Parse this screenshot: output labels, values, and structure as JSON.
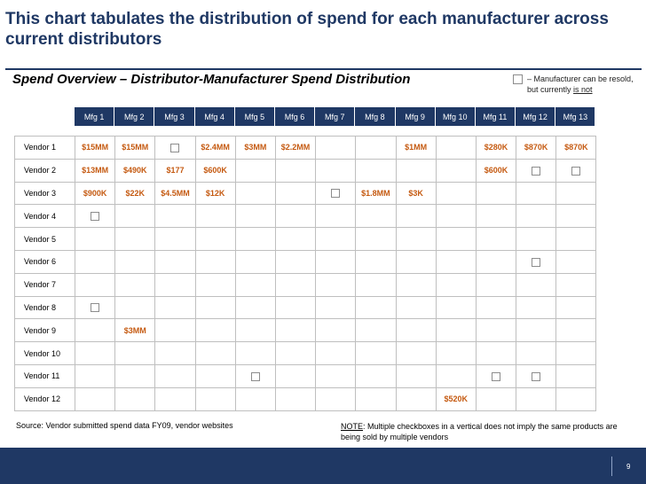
{
  "title": "This chart tabulates the distribution of spend for each manufacturer across current distributors",
  "subtitle": "Spend Overview – Distributor-Manufacturer Spend Distribution",
  "legend": {
    "text_before": "– Manufacturer can be resold, but currently ",
    "text_underlined": "is not",
    "icon": "checkbox-icon"
  },
  "manufacturers": [
    "Mfg 1",
    "Mfg 2",
    "Mfg 3",
    "Mfg 4",
    "Mfg 5",
    "Mfg 6",
    "Mfg 7",
    "Mfg 8",
    "Mfg 9",
    "Mfg 10",
    "Mfg 11",
    "Mfg 12",
    "Mfg 13"
  ],
  "rows": [
    {
      "vendor": "Vendor 1",
      "cells": [
        "$15MM",
        "$15MM",
        "[x]",
        "$2.4MM",
        "$3MM",
        "$2.2MM",
        "",
        "",
        "$1MM",
        "",
        "$280K",
        "$870K",
        "$870K"
      ]
    },
    {
      "vendor": "Vendor 2",
      "cells": [
        "$13MM",
        "$490K",
        "$177",
        "$600K",
        "",
        "",
        "",
        "",
        "",
        "",
        "$600K",
        "[x]",
        "[x]"
      ]
    },
    {
      "vendor": "Vendor 3",
      "cells": [
        "$900K",
        "$22K",
        "$4.5MM",
        "$12K",
        "",
        "",
        "[x]",
        "$1.8MM",
        "$3K",
        "",
        "",
        "",
        ""
      ]
    },
    {
      "vendor": "Vendor 4",
      "cells": [
        "[x]",
        "",
        "",
        "",
        "",
        "",
        "",
        "",
        "",
        "",
        "",
        "",
        ""
      ]
    },
    {
      "vendor": "Vendor 5",
      "cells": [
        "",
        "",
        "",
        "",
        "",
        "",
        "",
        "",
        "",
        "",
        "",
        "",
        ""
      ]
    },
    {
      "vendor": "Vendor 6",
      "cells": [
        "",
        "",
        "",
        "",
        "",
        "",
        "",
        "",
        "",
        "",
        "",
        "[x]",
        ""
      ]
    },
    {
      "vendor": "Vendor 7",
      "cells": [
        "",
        "",
        "",
        "",
        "",
        "",
        "",
        "",
        "",
        "",
        "",
        "",
        ""
      ]
    },
    {
      "vendor": "Vendor 8",
      "cells": [
        "[x]",
        "",
        "",
        "",
        "",
        "",
        "",
        "",
        "",
        "",
        "",
        "",
        ""
      ]
    },
    {
      "vendor": "Vendor 9",
      "cells": [
        "",
        "$3MM",
        "",
        "",
        "",
        "",
        "",
        "",
        "",
        "",
        "",
        "",
        ""
      ]
    },
    {
      "vendor": "Vendor 10",
      "cells": [
        "",
        "",
        "",
        "",
        "",
        "",
        "",
        "",
        "",
        "",
        "",
        "",
        ""
      ]
    },
    {
      "vendor": "Vendor 11",
      "cells": [
        "",
        "",
        "",
        "",
        "[x]",
        "",
        "",
        "",
        "",
        "",
        "[x]",
        "[x]",
        ""
      ]
    },
    {
      "vendor": "Vendor 12",
      "cells": [
        "",
        "",
        "",
        "",
        "",
        "",
        "",
        "",
        "",
        "$520K",
        "",
        "",
        ""
      ]
    }
  ],
  "source": "Source: Vendor submitted spend data FY09, vendor websites",
  "note": {
    "label": "NOTE",
    "text": ": Multiple checkboxes in a vertical does not imply the same products are being sold by multiple vendors"
  },
  "page_number": "9",
  "colors": {
    "navy": "#1f3864",
    "value_orange": "#c55a11",
    "grid_line": "#bfbfbf"
  }
}
